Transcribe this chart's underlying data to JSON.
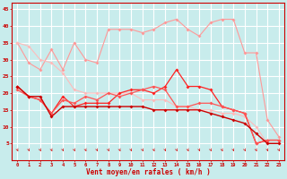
{
  "x": [
    0,
    1,
    2,
    3,
    4,
    5,
    6,
    7,
    8,
    9,
    10,
    11,
    12,
    13,
    14,
    15,
    16,
    17,
    18,
    19,
    20,
    21,
    22,
    23
  ],
  "line_pink_upper": [
    35,
    29,
    27,
    33,
    27,
    35,
    30,
    29,
    39,
    39,
    39,
    38,
    39,
    41,
    42,
    39,
    37,
    41,
    42,
    42,
    32,
    32,
    12,
    7
  ],
  "line_pink_lower": [
    35,
    34,
    30,
    29,
    26,
    21,
    20,
    20,
    20,
    20,
    20,
    18,
    18,
    18,
    16,
    16,
    15,
    15,
    14,
    14,
    13,
    10,
    5,
    5
  ],
  "line_red_jagged": [
    22,
    19,
    18,
    14,
    19,
    16,
    17,
    17,
    17,
    20,
    21,
    21,
    20,
    22,
    27,
    22,
    22,
    21,
    16,
    15,
    14,
    5,
    6,
    6
  ],
  "line_red_medium": [
    21,
    19,
    18,
    14,
    18,
    17,
    19,
    18,
    20,
    19,
    20,
    21,
    22,
    21,
    16,
    16,
    17,
    17,
    16,
    15,
    14,
    5,
    6,
    6
  ],
  "line_dark_lower": [
    22,
    19,
    19,
    13,
    16,
    16,
    16,
    16,
    16,
    16,
    16,
    16,
    15,
    15,
    15,
    15,
    15,
    14,
    13,
    12,
    11,
    8,
    5,
    5
  ],
  "bg_color": "#c8ecec",
  "grid_color": "#b0dede",
  "line_pink_upper_color": "#ff9999",
  "line_pink_lower_color": "#ffbbbb",
  "line_red_jagged_color": "#ff2222",
  "line_red_medium_color": "#ff5555",
  "line_dark_lower_color": "#cc0000",
  "xlabel": "Vent moyen/en rafales ( km/h )",
  "ylim": [
    0,
    47
  ],
  "xlim": [
    -0.5,
    23.5
  ],
  "yticks": [
    5,
    10,
    15,
    20,
    25,
    30,
    35,
    40,
    45
  ],
  "xticks": [
    0,
    1,
    2,
    3,
    4,
    5,
    6,
    7,
    8,
    9,
    10,
    11,
    12,
    13,
    14,
    15,
    16,
    17,
    18,
    19,
    20,
    21,
    22,
    23
  ]
}
